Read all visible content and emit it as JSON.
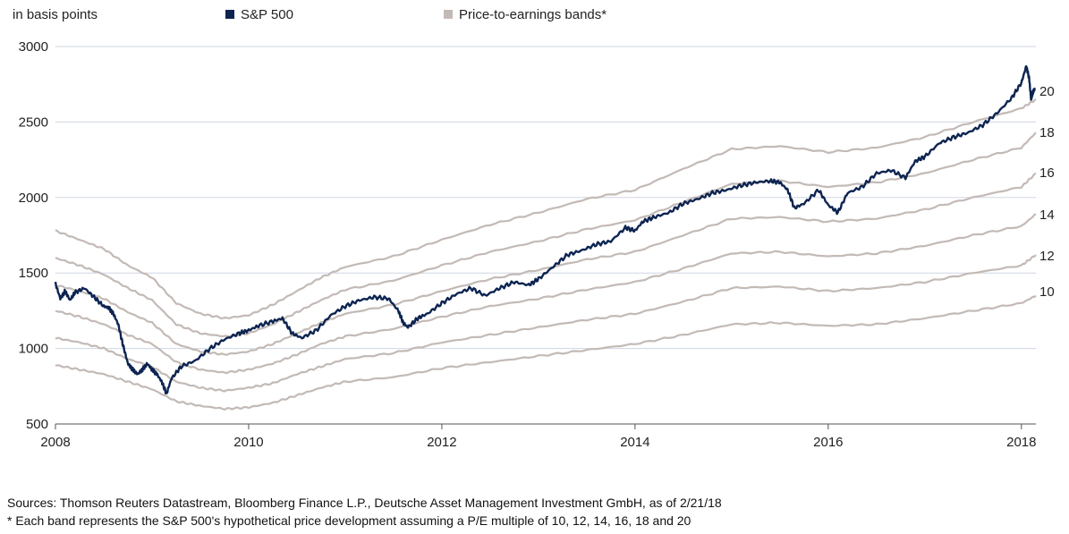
{
  "legend": {
    "unit_label": "in basis points",
    "sp500_label": "S&P 500",
    "bands_label": "Price-to-earnings bands*"
  },
  "colors": {
    "sp500": "#0d2451",
    "bands": "#c3bab6",
    "grid": "#cfd6e2",
    "axis": "#555555",
    "text": "#222222"
  },
  "footnotes": {
    "sources": "Sources: Thomson Reuters Datastream, Bloomberg Finance L.P., Deutsche Asset Management Investment GmbH, as of 2/21/18",
    "note": "* Each band represents the S&P 500's hypothetical price development assuming a P/E multiple of 10, 12, 14, 16, 18 and 20"
  },
  "chart_data": {
    "type": "line",
    "title": "",
    "xlabel": "",
    "ylabel": "in basis points",
    "xlim": [
      2008.0,
      2018.15
    ],
    "ylim": [
      500,
      3000
    ],
    "y_ticks": [
      500,
      1000,
      1500,
      2000,
      2500,
      3000
    ],
    "x_ticks": [
      2008,
      2010,
      2012,
      2014,
      2016,
      2018
    ],
    "grid": "horizontal",
    "legend_position": "top",
    "series": [
      {
        "name": "S&P 500",
        "x": [
          2008.0,
          2008.05,
          2008.1,
          2008.15,
          2008.2,
          2008.3,
          2008.4,
          2008.5,
          2008.55,
          2008.6,
          2008.65,
          2008.7,
          2008.75,
          2008.8,
          2008.85,
          2008.9,
          2008.95,
          2009.0,
          2009.05,
          2009.1,
          2009.15,
          2009.2,
          2009.3,
          2009.45,
          2009.6,
          2009.75,
          2009.9,
          2010.0,
          2010.1,
          2010.25,
          2010.35,
          2010.45,
          2010.55,
          2010.7,
          2010.85,
          2011.0,
          2011.15,
          2011.3,
          2011.45,
          2011.55,
          2011.6,
          2011.65,
          2011.75,
          2011.85,
          2012.0,
          2012.15,
          2012.3,
          2012.45,
          2012.6,
          2012.75,
          2012.9,
          2013.0,
          2013.15,
          2013.3,
          2013.45,
          2013.6,
          2013.75,
          2013.9,
          2014.0,
          2014.08,
          2014.2,
          2014.35,
          2014.5,
          2014.65,
          2014.8,
          2014.95,
          2015.1,
          2015.25,
          2015.4,
          2015.5,
          2015.58,
          2015.65,
          2015.75,
          2015.9,
          2016.0,
          2016.1,
          2016.2,
          2016.35,
          2016.5,
          2016.65,
          2016.8,
          2016.9,
          2017.0,
          2017.15,
          2017.3,
          2017.45,
          2017.6,
          2017.75,
          2017.9,
          2018.0,
          2018.05,
          2018.08,
          2018.1,
          2018.12,
          2018.14
        ],
        "values": [
          1430,
          1330,
          1380,
          1320,
          1370,
          1400,
          1340,
          1280,
          1270,
          1230,
          1160,
          1020,
          900,
          860,
          830,
          860,
          900,
          860,
          830,
          780,
          700,
          800,
          880,
          920,
          1000,
          1060,
          1100,
          1120,
          1150,
          1180,
          1200,
          1100,
          1070,
          1120,
          1220,
          1280,
          1320,
          1340,
          1330,
          1250,
          1170,
          1140,
          1200,
          1230,
          1300,
          1360,
          1400,
          1350,
          1400,
          1440,
          1420,
          1460,
          1540,
          1620,
          1650,
          1690,
          1710,
          1800,
          1780,
          1840,
          1870,
          1900,
          1960,
          1990,
          2030,
          2050,
          2080,
          2100,
          2110,
          2100,
          2050,
          1930,
          1960,
          2050,
          1950,
          1900,
          2030,
          2070,
          2160,
          2180,
          2130,
          2240,
          2270,
          2360,
          2400,
          2430,
          2480,
          2560,
          2660,
          2760,
          2870,
          2790,
          2650,
          2700,
          2720
        ]
      },
      {
        "name": "",
        "label": "20",
        "x": [
          2008.0,
          2008.25,
          2008.5,
          2008.75,
          2009.0,
          2009.25,
          2009.5,
          2009.75,
          2010.0,
          2010.25,
          2010.5,
          2010.75,
          2011.0,
          2011.5,
          2012.0,
          2012.5,
          2013.0,
          2013.5,
          2014.0,
          2014.5,
          2015.0,
          2015.5,
          2016.0,
          2016.5,
          2017.0,
          2017.5,
          2018.0,
          2018.15
        ],
        "values": [
          1780,
          1720,
          1660,
          1550,
          1470,
          1300,
          1230,
          1200,
          1220,
          1290,
          1380,
          1470,
          1540,
          1610,
          1720,
          1820,
          1900,
          1990,
          2050,
          2190,
          2320,
          2340,
          2300,
          2330,
          2400,
          2500,
          2590,
          2650
        ]
      },
      {
        "name": "",
        "label": "18",
        "x": [
          2008.0,
          2008.25,
          2008.5,
          2008.75,
          2009.0,
          2009.25,
          2009.5,
          2009.75,
          2010.0,
          2010.25,
          2010.5,
          2010.75,
          2011.0,
          2011.5,
          2012.0,
          2012.5,
          2013.0,
          2013.5,
          2014.0,
          2014.5,
          2015.0,
          2015.5,
          2016.0,
          2016.5,
          2017.0,
          2017.5,
          2018.0,
          2018.15
        ],
        "values": [
          1600,
          1550,
          1490,
          1400,
          1320,
          1160,
          1100,
          1080,
          1100,
          1160,
          1240,
          1320,
          1390,
          1450,
          1550,
          1640,
          1710,
          1790,
          1850,
          1970,
          2090,
          2110,
          2070,
          2100,
          2160,
          2250,
          2330,
          2430
        ]
      },
      {
        "name": "",
        "label": "16",
        "x": [
          2008.0,
          2008.25,
          2008.5,
          2008.75,
          2009.0,
          2009.25,
          2009.5,
          2009.75,
          2010.0,
          2010.25,
          2010.5,
          2010.75,
          2011.0,
          2011.5,
          2012.0,
          2012.5,
          2013.0,
          2013.5,
          2014.0,
          2014.5,
          2015.0,
          2015.5,
          2016.0,
          2016.5,
          2017.0,
          2017.5,
          2018.0,
          2018.15
        ],
        "values": [
          1420,
          1380,
          1330,
          1240,
          1170,
          1030,
          980,
          960,
          980,
          1030,
          1100,
          1170,
          1230,
          1290,
          1380,
          1460,
          1520,
          1590,
          1640,
          1750,
          1860,
          1870,
          1840,
          1860,
          1920,
          2000,
          2070,
          2160
        ]
      },
      {
        "name": "",
        "label": "14",
        "x": [
          2008.0,
          2008.25,
          2008.5,
          2008.75,
          2009.0,
          2009.25,
          2009.5,
          2009.75,
          2010.0,
          2010.25,
          2010.5,
          2010.75,
          2011.0,
          2011.5,
          2012.0,
          2012.5,
          2013.0,
          2013.5,
          2014.0,
          2014.5,
          2015.0,
          2015.5,
          2016.0,
          2016.5,
          2017.0,
          2017.5,
          2018.0,
          2018.15
        ],
        "values": [
          1250,
          1210,
          1160,
          1090,
          1030,
          910,
          860,
          840,
          860,
          900,
          960,
          1030,
          1080,
          1130,
          1210,
          1280,
          1330,
          1390,
          1440,
          1530,
          1630,
          1640,
          1610,
          1630,
          1680,
          1750,
          1810,
          1890
        ]
      },
      {
        "name": "",
        "label": "12",
        "x": [
          2008.0,
          2008.25,
          2008.5,
          2008.75,
          2009.0,
          2009.25,
          2009.5,
          2009.75,
          2010.0,
          2010.25,
          2010.5,
          2010.75,
          2011.0,
          2011.5,
          2012.0,
          2012.5,
          2013.0,
          2013.5,
          2014.0,
          2014.5,
          2015.0,
          2015.5,
          2016.0,
          2016.5,
          2017.0,
          2017.5,
          2018.0,
          2018.15
        ],
        "values": [
          1070,
          1040,
          1000,
          930,
          880,
          780,
          740,
          720,
          740,
          770,
          830,
          880,
          930,
          970,
          1040,
          1090,
          1140,
          1190,
          1230,
          1310,
          1400,
          1410,
          1380,
          1400,
          1440,
          1500,
          1550,
          1620
        ]
      },
      {
        "name": "",
        "label": "10",
        "x": [
          2008.0,
          2008.25,
          2008.5,
          2008.75,
          2009.0,
          2009.25,
          2009.5,
          2009.75,
          2010.0,
          2010.25,
          2010.5,
          2010.75,
          2011.0,
          2011.5,
          2012.0,
          2012.5,
          2013.0,
          2013.5,
          2014.0,
          2014.5,
          2015.0,
          2015.5,
          2016.0,
          2016.5,
          2017.0,
          2017.5,
          2018.0,
          2018.15
        ],
        "values": [
          890,
          860,
          830,
          780,
          730,
          650,
          620,
          600,
          610,
          640,
          690,
          740,
          780,
          810,
          870,
          910,
          950,
          990,
          1030,
          1090,
          1160,
          1170,
          1150,
          1160,
          1200,
          1250,
          1300,
          1350
        ]
      }
    ]
  }
}
